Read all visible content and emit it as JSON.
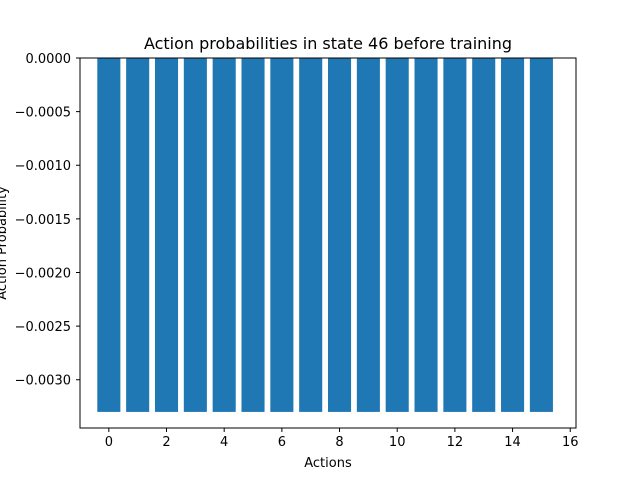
{
  "chart_data": {
    "type": "bar",
    "title": "Action probabilities in state 46 before training",
    "xlabel": "Actions",
    "ylabel": "Action Probability",
    "categories": [
      0,
      1,
      2,
      3,
      4,
      5,
      6,
      7,
      8,
      9,
      10,
      11,
      12,
      13,
      14,
      15
    ],
    "values": [
      -0.0033,
      -0.0033,
      -0.0033,
      -0.0033,
      -0.0033,
      -0.0033,
      -0.0033,
      -0.0033,
      -0.0033,
      -0.0033,
      -0.0033,
      -0.0033,
      -0.0033,
      -0.0033,
      -0.0033,
      -0.0033
    ],
    "xlim": [
      -1,
      16.2
    ],
    "ylim": [
      -0.00345,
      0.0
    ],
    "xticks": [
      0,
      2,
      4,
      6,
      8,
      10,
      12,
      14,
      16
    ],
    "xtick_labels": [
      "0",
      "2",
      "4",
      "6",
      "8",
      "10",
      "12",
      "14",
      "16"
    ],
    "yticks": [
      0.0,
      -0.0005,
      -0.001,
      -0.0015,
      -0.002,
      -0.0025,
      -0.003
    ],
    "ytick_labels": [
      "0.0000",
      "−0.0005",
      "−0.0010",
      "−0.0015",
      "−0.0020",
      "−0.0025",
      "−0.0030"
    ],
    "grid": false,
    "bar_color": "#1f77b4"
  }
}
